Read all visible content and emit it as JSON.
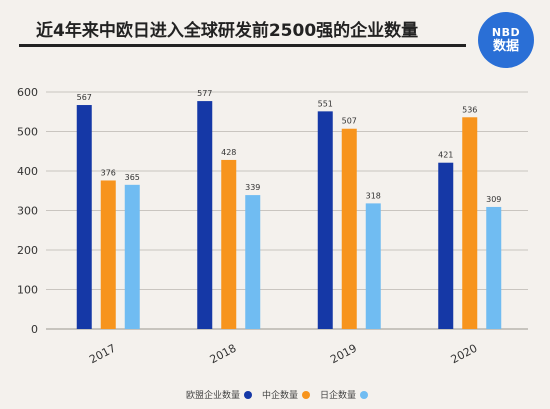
{
  "header": {
    "title": "近4年来中欧日进入全球研发前2500强的企业数量",
    "logo_top": "NBD",
    "logo_bottom": "数据"
  },
  "colors": {
    "eu": "#1538a6",
    "cn": "#f7941d",
    "jp": "#70bcf2",
    "grid": "#c9c5c0",
    "logo": "#2a6fd6"
  },
  "chart_data": {
    "type": "bar",
    "title": "近4年来中欧日进入全球研发前2500强的企业数量",
    "xlabel": "",
    "ylabel": "",
    "categories": [
      "2017",
      "2018",
      "2019",
      "2020"
    ],
    "ylim": [
      0,
      600
    ],
    "yticks": [
      0,
      100,
      200,
      300,
      400,
      500,
      600
    ],
    "grid": true,
    "legend_position": "bottom",
    "series": [
      {
        "name": "欧盟企业数量",
        "values": [
          567,
          577,
          551,
          421
        ]
      },
      {
        "name": "中企数量",
        "values": [
          376,
          428,
          507,
          536
        ]
      },
      {
        "name": "日企数量",
        "values": [
          365,
          339,
          318,
          309
        ]
      }
    ]
  }
}
